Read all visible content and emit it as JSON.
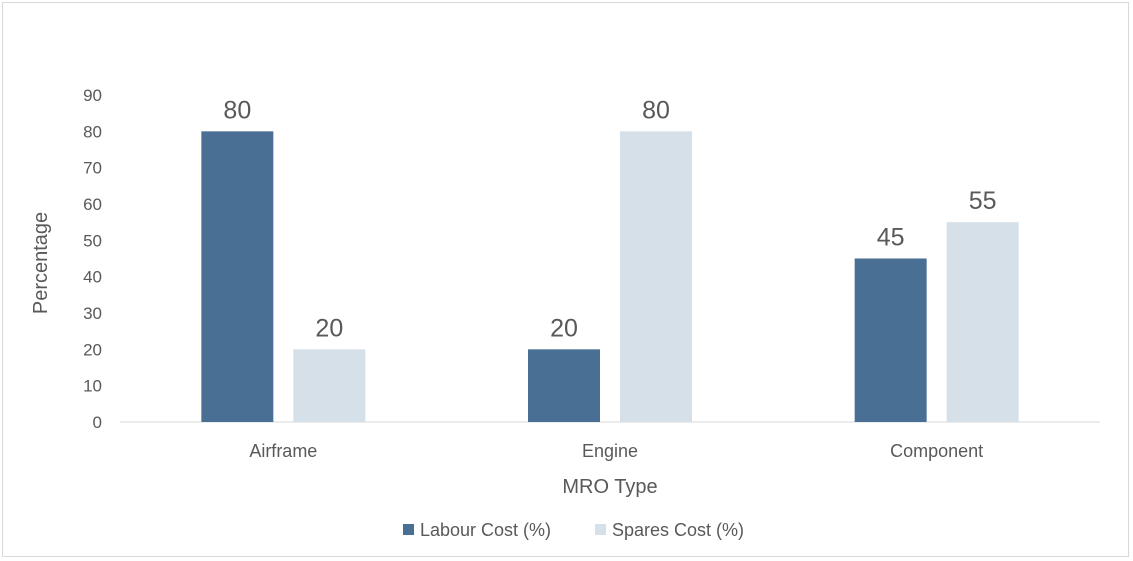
{
  "chart_data": {
    "type": "bar",
    "categories": [
      "Airframe",
      "Engine",
      "Component"
    ],
    "series": [
      {
        "name": "Labour Cost (%)",
        "values": [
          80,
          20,
          45
        ],
        "color": "#4a6f94"
      },
      {
        "name": "Spares Cost (%)",
        "values": [
          20,
          80,
          55
        ],
        "color": "#d6e0e9"
      }
    ],
    "yticks": [
      "0",
      "10",
      "20",
      "30",
      "40",
      "50",
      "60",
      "70",
      "80",
      "90"
    ],
    "ylim": [
      0,
      90
    ],
    "xlabel": "MRO Type",
    "ylabel": "Percentage",
    "grid": false,
    "legend": "bottom-center",
    "data_labels": true
  }
}
